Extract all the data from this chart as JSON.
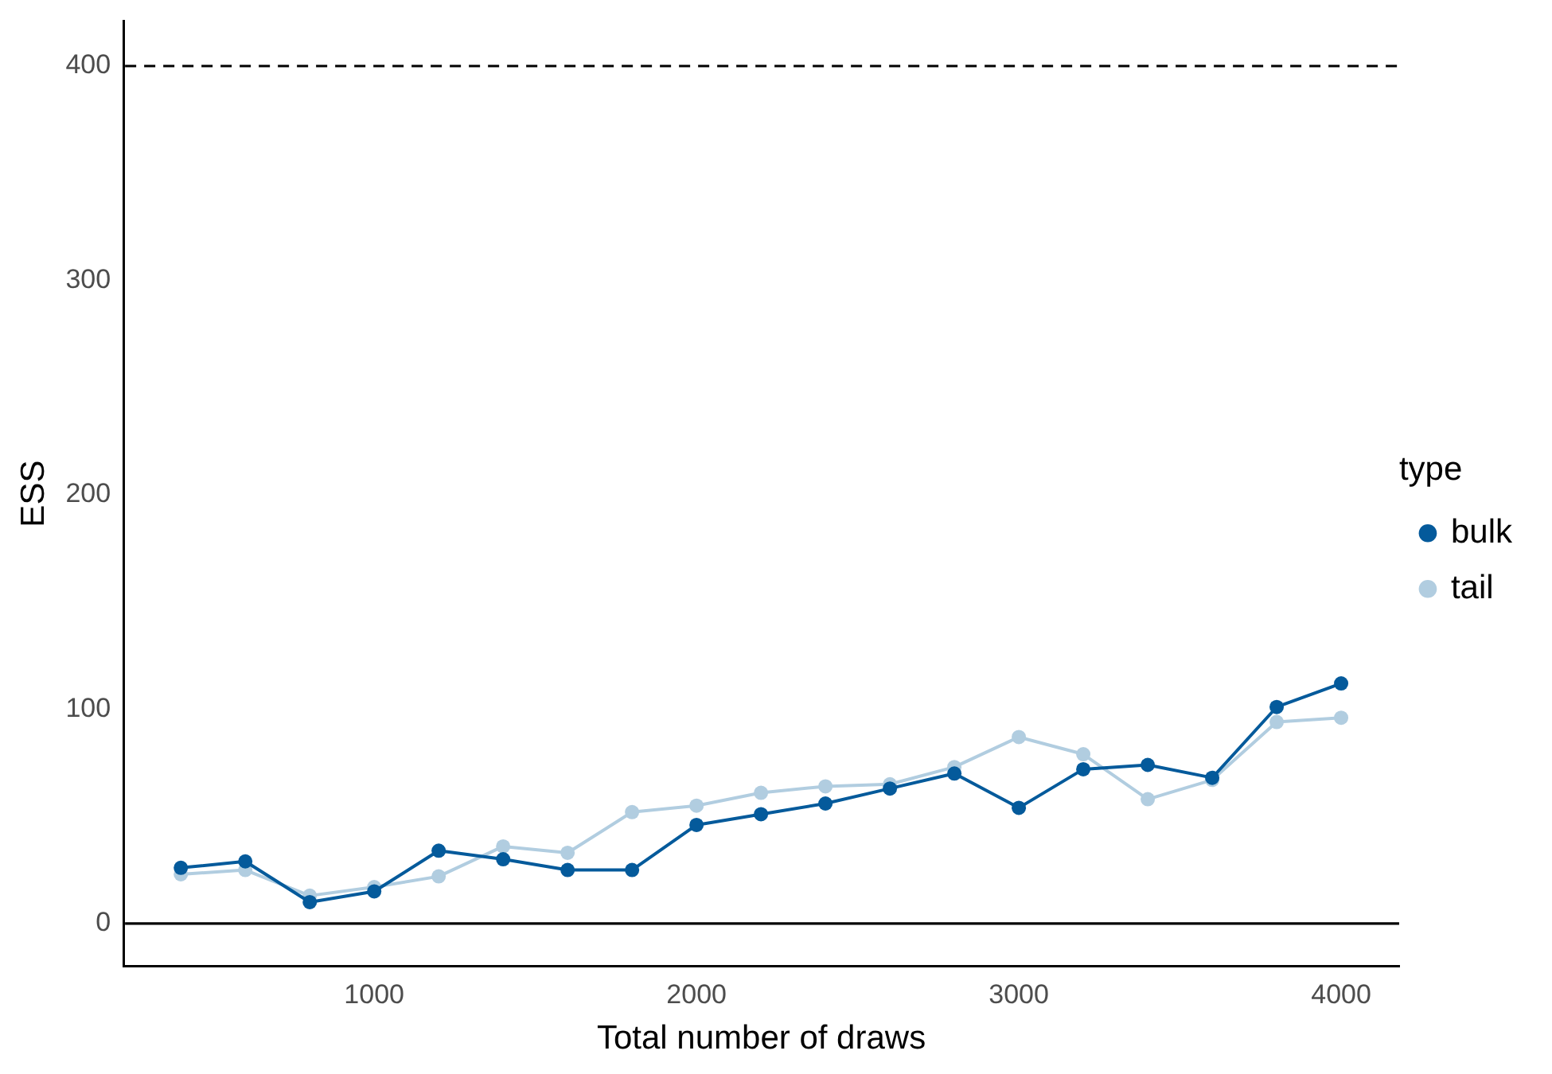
{
  "chart_data": {
    "type": "line",
    "xlabel": "Total number of draws",
    "ylabel": "ESS",
    "legend_title": "type",
    "legend": "right",
    "marker": "circle",
    "line_style": "solid",
    "grid": false,
    "x": [
      400,
      600,
      800,
      1000,
      1200,
      1400,
      1600,
      1800,
      2000,
      2200,
      2400,
      2600,
      2800,
      3000,
      3200,
      3400,
      3600,
      3800,
      4000
    ],
    "series": [
      {
        "name": "bulk",
        "color": "#045a9b",
        "values": [
          26,
          29,
          10,
          15,
          34,
          30,
          25,
          25,
          46,
          51,
          56,
          63,
          70,
          54,
          72,
          74,
          68,
          101,
          112
        ]
      },
      {
        "name": "tail",
        "color": "#b1cde0",
        "values": [
          23,
          25,
          13,
          17,
          22,
          36,
          33,
          52,
          55,
          61,
          64,
          65,
          73,
          87,
          79,
          58,
          67,
          94,
          96
        ]
      }
    ],
    "xlim": [
      222,
      4180
    ],
    "ylim": [
      -20,
      421
    ],
    "xticks": [
      1000,
      2000,
      3000,
      4000
    ],
    "yticks": [
      0,
      100,
      200,
      300,
      400
    ],
    "ref_lines": [
      {
        "axis": "y",
        "value": 400,
        "line_style": "dashed",
        "color": "#000000"
      },
      {
        "axis": "y",
        "value": 0,
        "line_style": "solid",
        "color": "#000000"
      }
    ]
  }
}
